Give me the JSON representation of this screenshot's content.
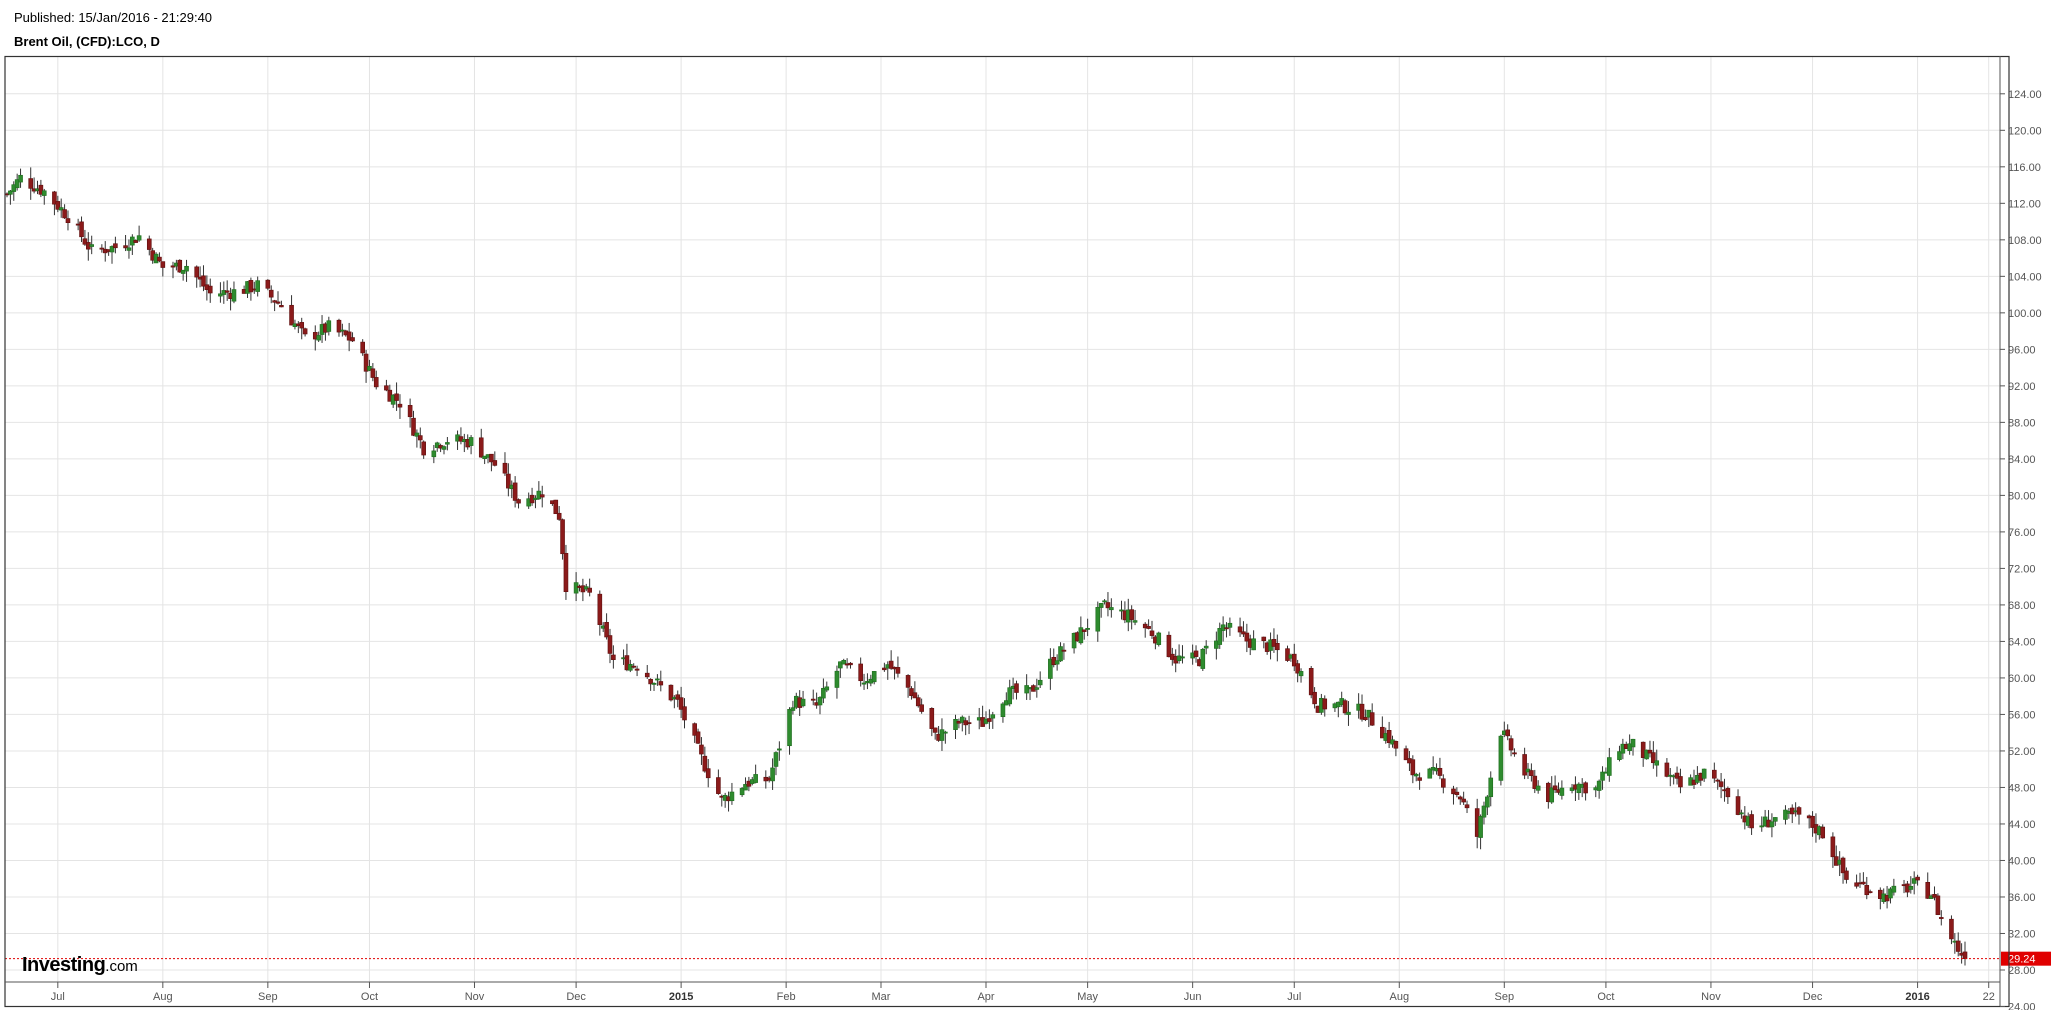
{
  "header": {
    "published": "Published: 15/Jan/2016 - 21:29:40",
    "title": "Brent Oil, (CFD):LCO, D"
  },
  "logo": {
    "main": "Investing",
    "suffix": ".com"
  },
  "colors": {
    "up": "#2e8b2e",
    "down": "#8b1a1a",
    "price_line": "#e00000",
    "grid": "#e4e4e4"
  },
  "chart_data": {
    "type": "candlestick",
    "ylim": [
      24,
      126
    ],
    "grid": true,
    "yticks": [
      "124.00",
      "120.00",
      "116.00",
      "112.00",
      "108.00",
      "104.00",
      "100.00",
      "96.00",
      "92.00",
      "88.00",
      "84.00",
      "80.00",
      "76.00",
      "72.00",
      "68.00",
      "64.00",
      "60.00",
      "56.00",
      "52.00",
      "48.00",
      "44.00",
      "40.00",
      "36.00",
      "32.00",
      "28.00",
      "24.00"
    ],
    "xticks": [
      {
        "label": "Jul",
        "date": "2014-07-01",
        "bold": false
      },
      {
        "label": "Aug",
        "date": "2014-08-01",
        "bold": false
      },
      {
        "label": "Sep",
        "date": "2014-09-01",
        "bold": false
      },
      {
        "label": "Oct",
        "date": "2014-10-01",
        "bold": false
      },
      {
        "label": "Nov",
        "date": "2014-11-01",
        "bold": false
      },
      {
        "label": "Dec",
        "date": "2014-12-01",
        "bold": false
      },
      {
        "label": "2015",
        "date": "2015-01-01",
        "bold": true
      },
      {
        "label": "Feb",
        "date": "2015-02-01",
        "bold": false
      },
      {
        "label": "Mar",
        "date": "2015-03-01",
        "bold": false
      },
      {
        "label": "Apr",
        "date": "2015-04-01",
        "bold": false
      },
      {
        "label": "May",
        "date": "2015-05-01",
        "bold": false
      },
      {
        "label": "Jun",
        "date": "2015-06-01",
        "bold": false
      },
      {
        "label": "Jul",
        "date": "2015-07-01",
        "bold": false
      },
      {
        "label": "Aug",
        "date": "2015-08-01",
        "bold": false
      },
      {
        "label": "Sep",
        "date": "2015-09-01",
        "bold": false
      },
      {
        "label": "Oct",
        "date": "2015-10-01",
        "bold": false
      },
      {
        "label": "Nov",
        "date": "2015-11-01",
        "bold": false
      },
      {
        "label": "Dec",
        "date": "2015-12-01",
        "bold": false
      },
      {
        "label": "2016",
        "date": "2016-01-01",
        "bold": true
      },
      {
        "label": "22",
        "date": "2016-01-22",
        "bold": false
      }
    ],
    "last_price": 29.24,
    "last_price_label": "29.24",
    "close_series": [
      {
        "date": "2014-06-16",
        "close": 113.0
      },
      {
        "date": "2014-06-20",
        "close": 114.8
      },
      {
        "date": "2014-06-27",
        "close": 113.3
      },
      {
        "date": "2014-07-04",
        "close": 110.6
      },
      {
        "date": "2014-07-11",
        "close": 106.8
      },
      {
        "date": "2014-07-18",
        "close": 107.2
      },
      {
        "date": "2014-07-25",
        "close": 108.4
      },
      {
        "date": "2014-08-01",
        "close": 105.0
      },
      {
        "date": "2014-08-08",
        "close": 105.2
      },
      {
        "date": "2014-08-15",
        "close": 102.1
      },
      {
        "date": "2014-08-22",
        "close": 102.3
      },
      {
        "date": "2014-08-29",
        "close": 103.0
      },
      {
        "date": "2014-09-05",
        "close": 100.8
      },
      {
        "date": "2014-09-12",
        "close": 97.2
      },
      {
        "date": "2014-09-19",
        "close": 98.4
      },
      {
        "date": "2014-09-26",
        "close": 97.0
      },
      {
        "date": "2014-10-03",
        "close": 92.3
      },
      {
        "date": "2014-10-10",
        "close": 90.2
      },
      {
        "date": "2014-10-17",
        "close": 85.2
      },
      {
        "date": "2014-10-24",
        "close": 86.1
      },
      {
        "date": "2014-10-31",
        "close": 85.9
      },
      {
        "date": "2014-11-07",
        "close": 83.4
      },
      {
        "date": "2014-11-14",
        "close": 79.4
      },
      {
        "date": "2014-11-21",
        "close": 80.4
      },
      {
        "date": "2014-11-26",
        "close": 77.8
      },
      {
        "date": "2014-11-28",
        "close": 70.2
      },
      {
        "date": "2014-12-05",
        "close": 69.1
      },
      {
        "date": "2014-12-12",
        "close": 61.9
      },
      {
        "date": "2014-12-19",
        "close": 61.4
      },
      {
        "date": "2014-12-31",
        "close": 57.3
      },
      {
        "date": "2015-01-07",
        "close": 51.2
      },
      {
        "date": "2015-01-13",
        "close": 46.6
      },
      {
        "date": "2015-01-20",
        "close": 48.5
      },
      {
        "date": "2015-01-27",
        "close": 48.9
      },
      {
        "date": "2015-02-03",
        "close": 57.5
      },
      {
        "date": "2015-02-10",
        "close": 56.9
      },
      {
        "date": "2015-02-17",
        "close": 61.4
      },
      {
        "date": "2015-02-24",
        "close": 59.8
      },
      {
        "date": "2015-03-03",
        "close": 61.5
      },
      {
        "date": "2015-03-10",
        "close": 58.5
      },
      {
        "date": "2015-03-17",
        "close": 53.5
      },
      {
        "date": "2015-03-24",
        "close": 55.1
      },
      {
        "date": "2015-03-31",
        "close": 55.1
      },
      {
        "date": "2015-04-07",
        "close": 58.3
      },
      {
        "date": "2015-04-14",
        "close": 58.4
      },
      {
        "date": "2015-04-21",
        "close": 62.1
      },
      {
        "date": "2015-04-28",
        "close": 64.6
      },
      {
        "date": "2015-05-06",
        "close": 67.8
      },
      {
        "date": "2015-05-13",
        "close": 66.8
      },
      {
        "date": "2015-05-20",
        "close": 65.0
      },
      {
        "date": "2015-05-27",
        "close": 62.1
      },
      {
        "date": "2015-06-03",
        "close": 62.0
      },
      {
        "date": "2015-06-10",
        "close": 65.7
      },
      {
        "date": "2015-06-17",
        "close": 64.1
      },
      {
        "date": "2015-06-24",
        "close": 63.4
      },
      {
        "date": "2015-07-01",
        "close": 62.0
      },
      {
        "date": "2015-07-08",
        "close": 57.0
      },
      {
        "date": "2015-07-15",
        "close": 57.0
      },
      {
        "date": "2015-07-22",
        "close": 56.1
      },
      {
        "date": "2015-07-29",
        "close": 53.4
      },
      {
        "date": "2015-08-05",
        "close": 49.6
      },
      {
        "date": "2015-08-12",
        "close": 49.4
      },
      {
        "date": "2015-08-19",
        "close": 47.0
      },
      {
        "date": "2015-08-24",
        "close": 42.7
      },
      {
        "date": "2015-08-31",
        "close": 54.2
      },
      {
        "date": "2015-09-07",
        "close": 49.6
      },
      {
        "date": "2015-09-14",
        "close": 47.0
      },
      {
        "date": "2015-09-21",
        "close": 48.5
      },
      {
        "date": "2015-09-28",
        "close": 47.8
      },
      {
        "date": "2015-10-05",
        "close": 52.5
      },
      {
        "date": "2015-10-09",
        "close": 52.6
      },
      {
        "date": "2015-10-16",
        "close": 50.4
      },
      {
        "date": "2015-10-23",
        "close": 48.0
      },
      {
        "date": "2015-10-30",
        "close": 49.5
      },
      {
        "date": "2015-11-06",
        "close": 47.4
      },
      {
        "date": "2015-11-13",
        "close": 43.6
      },
      {
        "date": "2015-11-20",
        "close": 44.6
      },
      {
        "date": "2015-11-27",
        "close": 44.9
      },
      {
        "date": "2015-12-04",
        "close": 43.0
      },
      {
        "date": "2015-12-11",
        "close": 37.9
      },
      {
        "date": "2015-12-18",
        "close": 36.9
      },
      {
        "date": "2015-12-22",
        "close": 36.1
      },
      {
        "date": "2015-12-31",
        "close": 37.3
      },
      {
        "date": "2016-01-05",
        "close": 36.4
      },
      {
        "date": "2016-01-08",
        "close": 33.6
      },
      {
        "date": "2016-01-12",
        "close": 30.9
      },
      {
        "date": "2016-01-15",
        "close": 29.24
      }
    ]
  }
}
